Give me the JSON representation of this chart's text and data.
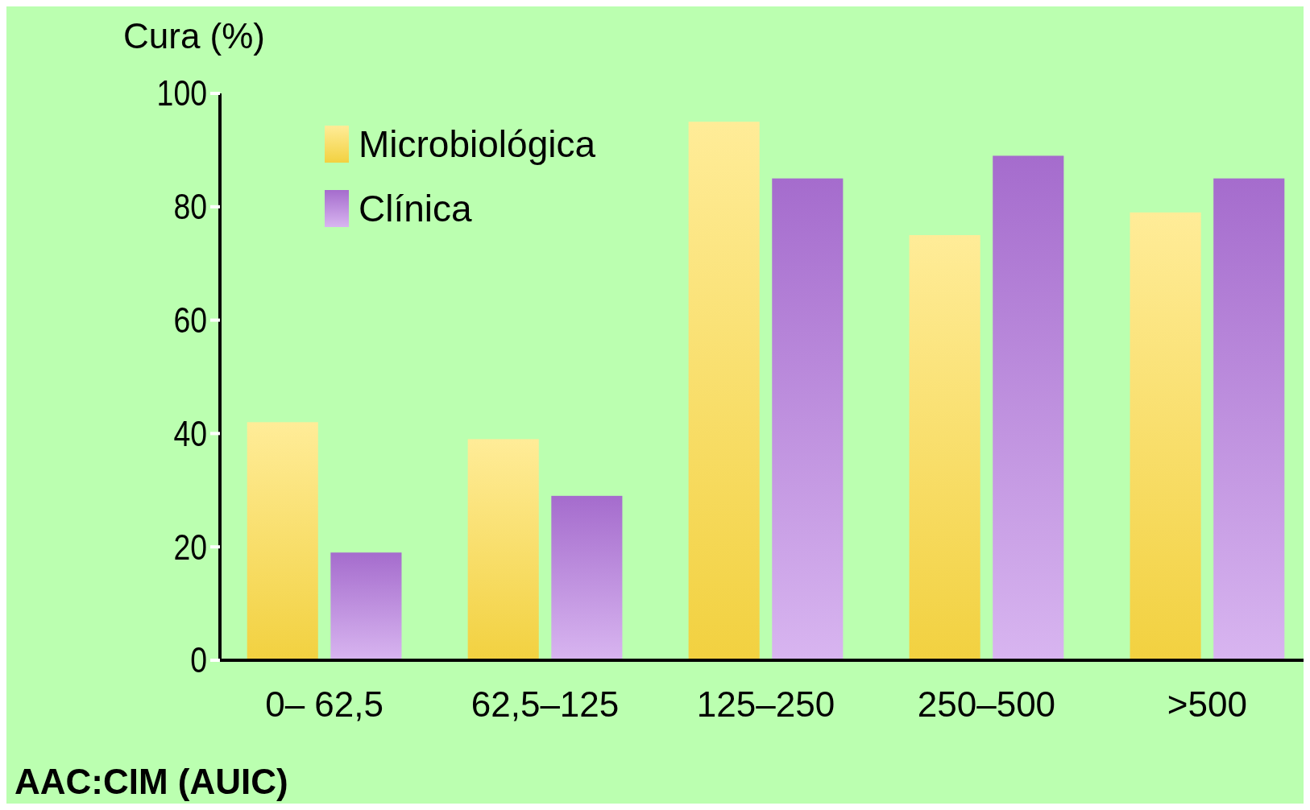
{
  "chart_data": {
    "type": "bar",
    "ylabel": "Cura (%)",
    "xlabel": "AAC:CIM (AUIC)",
    "categories": [
      "0– 62,5",
      "62,5–125",
      "125–250",
      "250–500",
      ">500"
    ],
    "series": [
      {
        "name": "Microbiológica",
        "color": "#ffdd44",
        "values": [
          42,
          39,
          95,
          75,
          79
        ]
      },
      {
        "name": "Clínica",
        "color": "#b878e4",
        "values": [
          19,
          29,
          85,
          89,
          85
        ]
      }
    ],
    "ylim": [
      0,
      100
    ],
    "yticks": [
      0,
      20,
      40,
      60,
      80,
      100
    ],
    "grid": false,
    "legend": "top left"
  }
}
